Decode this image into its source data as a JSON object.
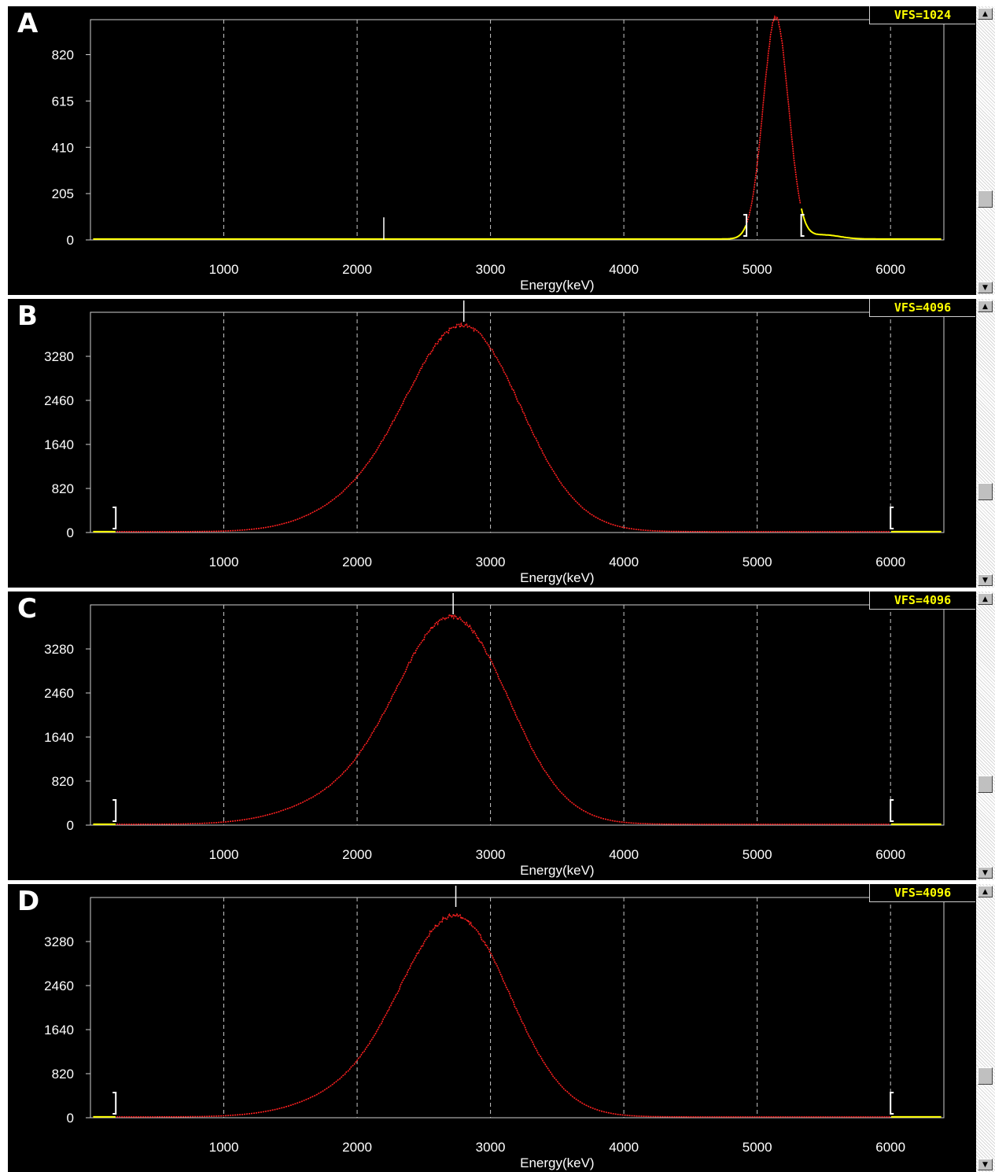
{
  "chart_data": [
    {
      "panel": "A",
      "type": "line",
      "vfs_label": "VFS=1024",
      "xlabel": "Energy(keV)",
      "xlim": [
        0,
        6400
      ],
      "ylim": [
        0,
        975
      ],
      "x_ticks": [
        1000,
        2000,
        3000,
        4000,
        5000,
        6000
      ],
      "y_ticks": [
        0,
        205,
        410,
        615,
        820
      ],
      "grid": "vertical dashed",
      "peak": {
        "center": 5140,
        "sigma": 95,
        "amplitude": 980
      },
      "tail": null,
      "bump": {
        "center": 5500,
        "sigma": 120,
        "amplitude": 18
      },
      "roi": [
        4920,
        5330
      ],
      "roi_markers": [
        {
          "x": 4920,
          "type": "]"
        },
        {
          "x": 5330,
          "type": "["
        }
      ],
      "cursor_marker": 2200,
      "cursor_marker_height": 100
    },
    {
      "panel": "B",
      "type": "line",
      "vfs_label": "VFS=4096",
      "xlabel": "Energy(keV)",
      "xlim": [
        0,
        6400
      ],
      "ylim": [
        0,
        4100
      ],
      "x_ticks": [
        1000,
        2000,
        3000,
        4000,
        5000,
        6000
      ],
      "y_ticks": [
        0,
        820,
        1640,
        2460,
        3280
      ],
      "grid": "vertical dashed",
      "peak": {
        "center": 2800,
        "sigma": 430,
        "amplitude": 3800
      },
      "tail": {
        "center": 2000,
        "sigma": 380,
        "amplitude": 350
      },
      "bump": null,
      "roi": [
        190,
        6000
      ],
      "roi_markers": [
        {
          "x": 190,
          "type": "]"
        },
        {
          "x": 6000,
          "type": "["
        }
      ],
      "cursor_marker": 2800,
      "cursor_marker_height": null
    },
    {
      "panel": "C",
      "type": "line",
      "vfs_label": "VFS=4096",
      "xlabel": "Energy(keV)",
      "xlim": [
        0,
        6400
      ],
      "ylim": [
        0,
        4100
      ],
      "x_ticks": [
        1000,
        2000,
        3000,
        4000,
        5000,
        6000
      ],
      "y_ticks": [
        0,
        820,
        1640,
        2460,
        3280
      ],
      "grid": "vertical dashed",
      "peak": {
        "center": 2720,
        "sigma": 420,
        "amplitude": 3800
      },
      "tail": {
        "center": 1900,
        "sigma": 420,
        "amplitude": 400
      },
      "bump": null,
      "roi": [
        190,
        6000
      ],
      "roi_markers": [
        {
          "x": 190,
          "type": "]"
        },
        {
          "x": 6000,
          "type": "["
        }
      ],
      "cursor_marker": 2720,
      "cursor_marker_height": null
    },
    {
      "panel": "D",
      "type": "line",
      "vfs_label": "VFS=4096",
      "xlabel": "Energy(keV)",
      "xlim": [
        0,
        6400
      ],
      "ylim": [
        0,
        4100
      ],
      "x_ticks": [
        1000,
        2000,
        3000,
        4000,
        5000,
        6000
      ],
      "y_ticks": [
        0,
        820,
        1640,
        2460,
        3280
      ],
      "grid": "vertical dashed",
      "peak": {
        "center": 2740,
        "sigma": 410,
        "amplitude": 3700
      },
      "tail": {
        "center": 1950,
        "sigma": 400,
        "amplitude": 330
      },
      "bump": null,
      "roi": [
        190,
        6000
      ],
      "roi_markers": [
        {
          "x": 190,
          "type": "]"
        },
        {
          "x": 6000,
          "type": "["
        }
      ],
      "cursor_marker": 2740,
      "cursor_marker_height": null
    }
  ],
  "colors": {
    "background": "#000000",
    "frame": "#d0d0d0",
    "grid": "#c8c8c8",
    "roi_trace": "#ff2020",
    "outside_trace": "#ffff00",
    "text": "#ffffff",
    "vfs_text": "#ffff00"
  },
  "icons": {
    "scroll_up": "up-arrow-icon",
    "scroll_down": "down-arrow-icon"
  },
  "scroll_position": 0.7
}
